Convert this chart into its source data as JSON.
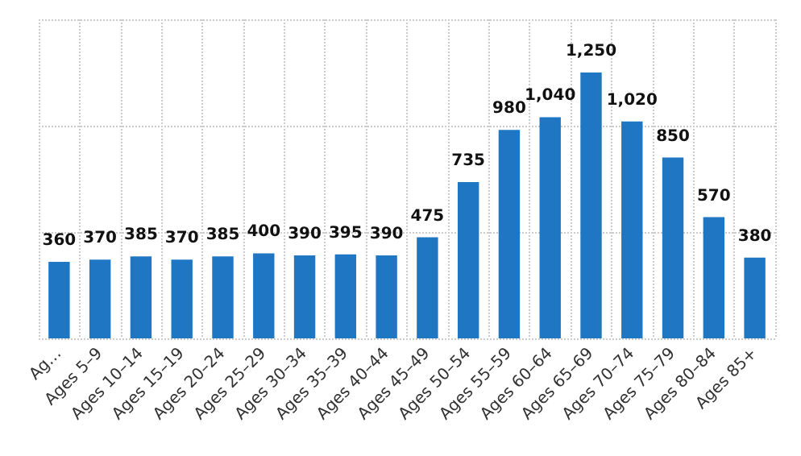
{
  "chart_data": {
    "type": "bar",
    "categories": [
      "Ag…",
      "Ages 5–9",
      "Ages 10–14",
      "Ages 15–19",
      "Ages 20–24",
      "Ages 25–29",
      "Ages 30–34",
      "Ages 35–39",
      "Ages 40–44",
      "Ages 45–49",
      "Ages 50–54",
      "Ages 55–59",
      "Ages 60–64",
      "Ages 65–69",
      "Ages 70–74",
      "Ages 75–79",
      "Ages 80–84",
      "Ages 85+"
    ],
    "values": [
      360,
      370,
      385,
      370,
      385,
      400,
      390,
      395,
      390,
      475,
      735,
      980,
      1040,
      1250,
      1020,
      850,
      570,
      380
    ],
    "color": "#1f77c4",
    "ylim": [
      0,
      1500
    ],
    "yticks": [
      {
        "value": 0,
        "label": null
      },
      {
        "value": 500,
        "label": null
      },
      {
        "value": 1000,
        "label": null
      },
      {
        "value": 1500,
        "label": null
      }
    ],
    "tick_labels": "x",
    "value_labels": [
      "360",
      "370",
      "385",
      "370",
      "385",
      "400",
      "390",
      "395",
      "390",
      "475",
      "735",
      "980",
      "1,040",
      "1,250",
      "1,020",
      "850",
      "570",
      "380"
    ],
    "grid": true
  }
}
